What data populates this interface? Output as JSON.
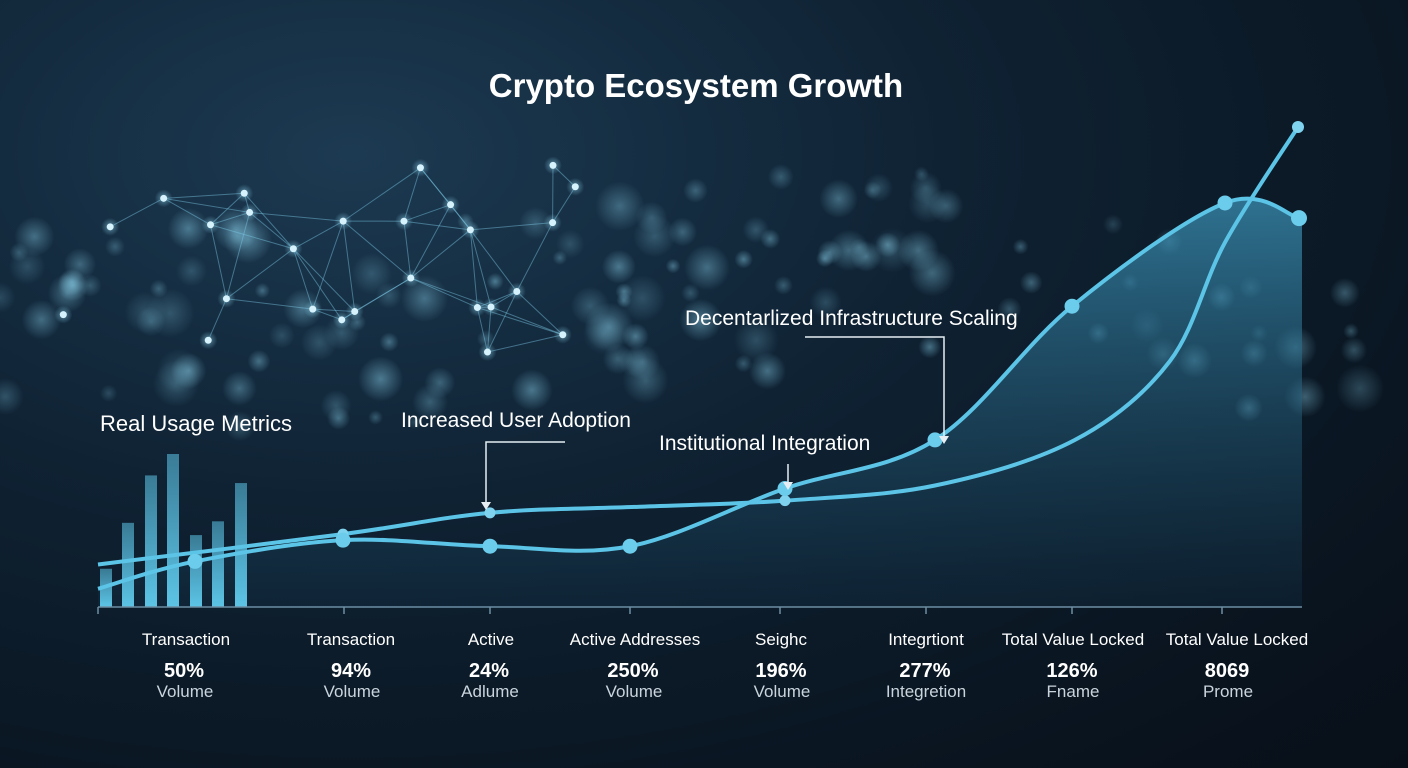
{
  "chart_data": {
    "type": "line",
    "title": "Crypto Ecosystem Growth",
    "inset_label": "Real Usage Metrics",
    "inset_bars": [
      0.25,
      0.55,
      0.86,
      1.0,
      0.47,
      0.56,
      0.81
    ],
    "curve_values": [
      0.14,
      0.24,
      0.31,
      0.33,
      0.35,
      0.4,
      0.55,
      0.81,
      1.2,
      1.58
    ],
    "area_values": [
      0.06,
      0.15,
      0.22,
      0.2,
      0.2,
      0.39,
      0.55,
      0.99,
      1.33
    ],
    "annotations": [
      {
        "text": "Increased User Adoption"
      },
      {
        "text": "Institutional Integration"
      },
      {
        "text": "Decentarlized Infrastructure Scaling"
      }
    ],
    "categories": [
      {
        "label": "Transaction",
        "value": "50%",
        "sub": "Volume"
      },
      {
        "label": "Transaction",
        "value": "94%",
        "sub": "Volume"
      },
      {
        "label": "Active",
        "value": "24%",
        "sub": "Adlume"
      },
      {
        "label": "Active Addresses",
        "value": "250%",
        "sub": "Volume"
      },
      {
        "label": "Seighc",
        "value": "196%",
        "sub": "Volume"
      },
      {
        "label": "Integrtiont",
        "value": "277%",
        "sub": "Integretion"
      },
      {
        "label": "Total Value Locked",
        "value": "126%",
        "sub": "Fname"
      },
      {
        "label": "Total Value Locked",
        "value": "8069",
        "sub": "Prome"
      }
    ],
    "colors": {
      "line": "#5cc4e6",
      "area": "#2a6f8f",
      "bar": "#4fb6dc",
      "text": "#ffffff",
      "subtext": "#c9d4dc"
    },
    "grid": false
  }
}
